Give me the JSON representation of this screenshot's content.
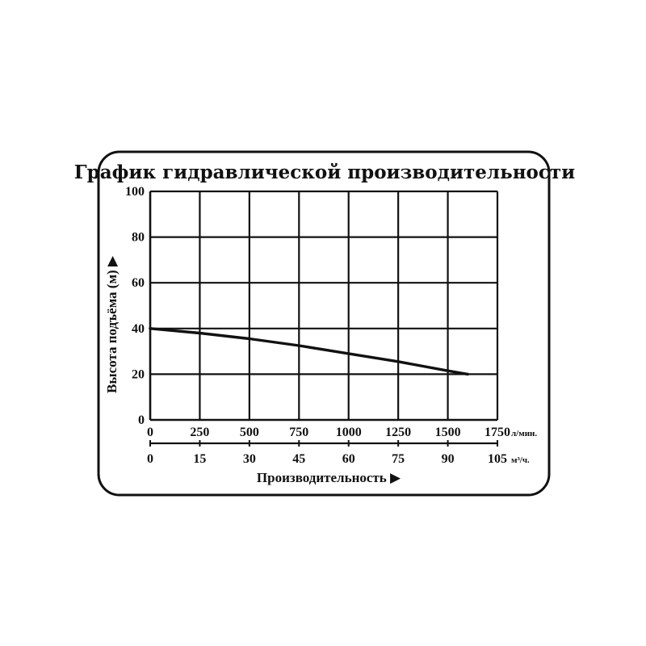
{
  "chart_data": {
    "type": "line",
    "title": "График гидравлической производительности",
    "ylabel": "Высота подъёма (м) ▶",
    "xlabel": "Производительность ▶",
    "ylim": [
      0,
      100
    ],
    "yticks": [
      "0",
      "20",
      "40",
      "60",
      "80",
      "100"
    ],
    "x_primary": {
      "unit": "л/мин.",
      "ticks": [
        "0",
        "250",
        "500",
        "750",
        "1000",
        "1250",
        "1500",
        "1750"
      ],
      "range": [
        0,
        1750
      ]
    },
    "x_secondary": {
      "unit": "м³/ч.",
      "ticks": [
        "0",
        "15",
        "30",
        "45",
        "60",
        "75",
        "90",
        "105"
      ],
      "range": [
        0,
        105
      ]
    },
    "grid": true,
    "series": [
      {
        "x": [
          0,
          250,
          500,
          750,
          1000,
          1250,
          1500,
          1600
        ],
        "y": [
          40,
          38,
          35.5,
          32.5,
          29,
          25.5,
          21.5,
          20
        ]
      }
    ]
  }
}
